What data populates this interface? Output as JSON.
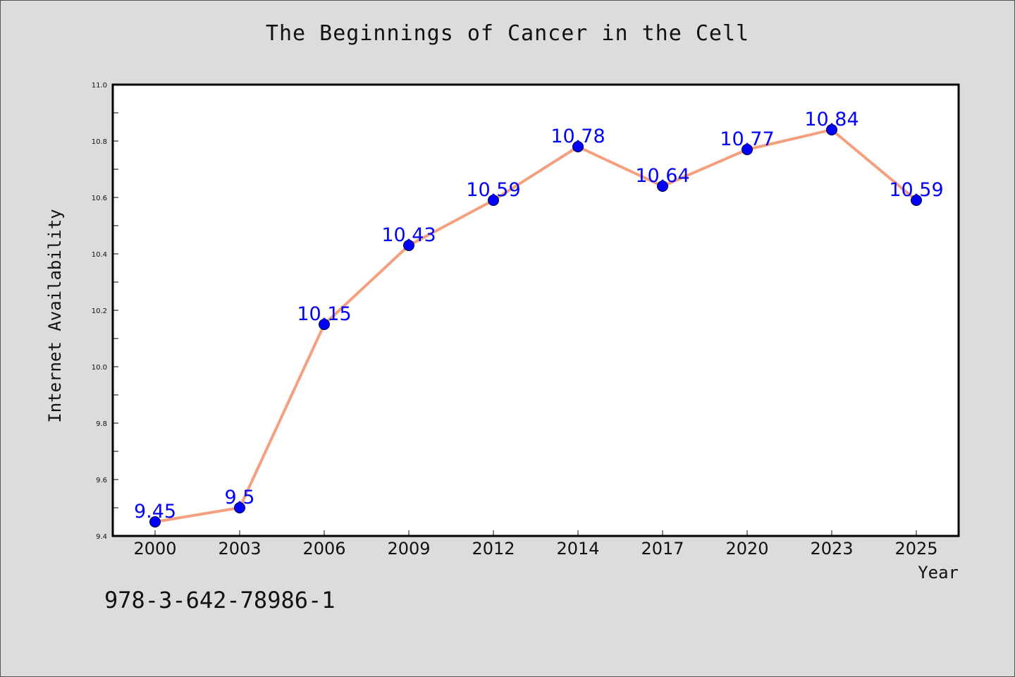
{
  "chart_data": {
    "type": "line",
    "title": "The Beginnings of Cancer in the Cell",
    "xlabel": "Year",
    "ylabel": "Internet Availability",
    "categories": [
      "2000",
      "2003",
      "2006",
      "2009",
      "2012",
      "2014",
      "2017",
      "2020",
      "2023",
      "2025"
    ],
    "values": [
      9.45,
      9.5,
      10.15,
      10.43,
      10.59,
      10.78,
      10.64,
      10.77,
      10.84,
      10.59
    ],
    "data_labels": [
      "9.45",
      "9.5",
      "10.15",
      "10.43",
      "10.59",
      "10.78",
      "10.64",
      "10.77",
      "10.84",
      "10.59"
    ],
    "ylim": [
      9.4,
      11.0
    ],
    "yticks": [
      "9.4",
      "9.6",
      "9.8",
      "10.0",
      "10.2",
      "10.4",
      "10.6",
      "10.8",
      "11.0"
    ],
    "grid": false,
    "line_color": "#f4a07f",
    "marker_color": "#0000ff",
    "label_color": "#0000ff"
  },
  "footer": {
    "isbn": "978-3-642-78986-1"
  }
}
